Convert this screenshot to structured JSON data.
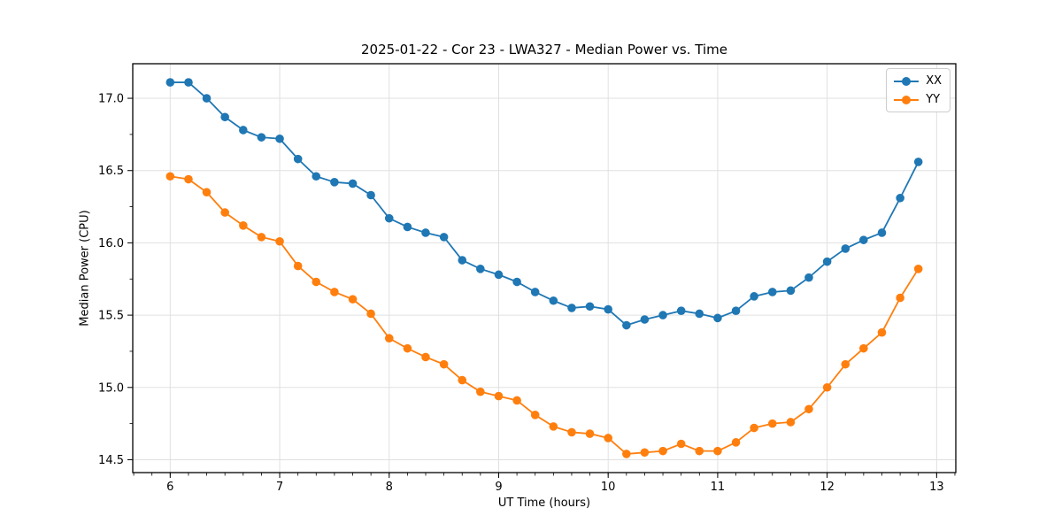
{
  "chart_data": {
    "type": "line",
    "title": "2025-01-22 - Cor 23 - LWA327 - Median Power vs. Time",
    "xlabel": "UT Time (hours)",
    "ylabel": "Median Power (CPU)",
    "xlim": [
      5.658,
      13.175
    ],
    "ylim": [
      14.411,
      17.239
    ],
    "x_ticks": [
      6,
      7,
      8,
      9,
      10,
      11,
      12,
      13
    ],
    "y_ticks": [
      14.5,
      15.0,
      15.5,
      16.0,
      16.5,
      17.0
    ],
    "x_minor_step": 0.166667,
    "y_minor_step": 0.25,
    "grid": true,
    "grid_color": "#e0e0e0",
    "legend_position": "upper right",
    "x": [
      6.0,
      6.167,
      6.333,
      6.5,
      6.667,
      6.833,
      7.0,
      7.167,
      7.333,
      7.5,
      7.667,
      7.833,
      8.0,
      8.167,
      8.333,
      8.5,
      8.667,
      8.833,
      9.0,
      9.167,
      9.333,
      9.5,
      9.667,
      9.833,
      10.0,
      10.167,
      10.333,
      10.5,
      10.667,
      10.833,
      11.0,
      11.167,
      11.333,
      11.5,
      11.667,
      11.833,
      12.0,
      12.167,
      12.333,
      12.5,
      12.667,
      12.833
    ],
    "series": [
      {
        "name": "XX",
        "color": "#1f77b4",
        "values": [
          17.11,
          17.11,
          17.0,
          16.87,
          16.78,
          16.73,
          16.72,
          16.58,
          16.46,
          16.42,
          16.41,
          16.33,
          16.17,
          16.11,
          16.07,
          16.04,
          15.88,
          15.82,
          15.78,
          15.73,
          15.66,
          15.6,
          15.55,
          15.56,
          15.54,
          15.43,
          15.47,
          15.5,
          15.53,
          15.51,
          15.48,
          15.53,
          15.63,
          15.66,
          15.67,
          15.76,
          15.87,
          15.96,
          16.02,
          16.07,
          16.31,
          16.56
        ]
      },
      {
        "name": "YY",
        "color": "#ff7f0e",
        "values": [
          16.46,
          16.44,
          16.35,
          16.21,
          16.12,
          16.04,
          16.01,
          15.84,
          15.73,
          15.66,
          15.61,
          15.51,
          15.34,
          15.27,
          15.21,
          15.16,
          15.05,
          14.97,
          14.94,
          14.91,
          14.81,
          14.73,
          14.69,
          14.68,
          14.65,
          14.54,
          14.55,
          14.56,
          14.61,
          14.56,
          14.56,
          14.62,
          14.72,
          14.75,
          14.76,
          14.85,
          15.0,
          15.16,
          15.27,
          15.38,
          15.62,
          15.82
        ]
      }
    ]
  }
}
